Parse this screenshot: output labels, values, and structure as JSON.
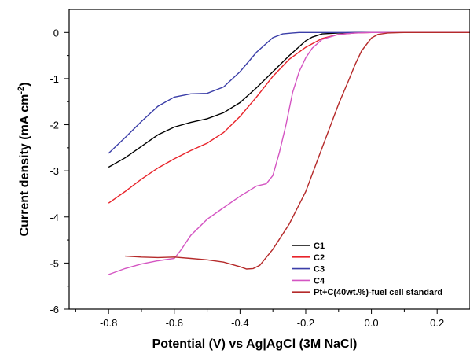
{
  "chart_data": {
    "type": "line",
    "title": "",
    "xlabel": "Potential (V) vs Ag|AgCl (3M NaCl)",
    "ylabel": "Current density (mA cm",
    "ylabel_sup": "-2",
    "ylabel_end": ")",
    "xlim": [
      -0.92,
      0.3
    ],
    "ylim": [
      -6,
      0.5
    ],
    "x_ticks": [
      -0.8,
      -0.6,
      -0.4,
      -0.2,
      0.0,
      0.2
    ],
    "x_tick_labels": [
      "-0.8",
      "-0.6",
      "-0.4",
      "-0.2",
      "0.0",
      "0.2"
    ],
    "y_ticks": [
      0,
      -1,
      -2,
      -3,
      -4,
      -5,
      -6
    ],
    "y_tick_labels": [
      "0",
      "-1",
      "-2",
      "-3",
      "-4",
      "-5",
      "-6"
    ],
    "grid": false,
    "legend_position": "bottom-right",
    "series": [
      {
        "name": "C1",
        "color": "#000000",
        "x": [
          -0.8,
          -0.75,
          -0.7,
          -0.65,
          -0.6,
          -0.55,
          -0.5,
          -0.45,
          -0.4,
          -0.35,
          -0.3,
          -0.25,
          -0.2,
          -0.18,
          -0.15,
          -0.1,
          -0.05,
          0.0,
          0.1,
          0.2,
          0.3
        ],
        "y": [
          -2.92,
          -2.72,
          -2.47,
          -2.22,
          -2.05,
          -1.95,
          -1.87,
          -1.74,
          -1.52,
          -1.2,
          -0.85,
          -0.5,
          -0.18,
          -0.1,
          -0.03,
          -0.01,
          0.0,
          0.0,
          0.0,
          0.0,
          0.0
        ]
      },
      {
        "name": "C2",
        "color": "#e8232a",
        "x": [
          -0.8,
          -0.75,
          -0.7,
          -0.65,
          -0.6,
          -0.55,
          -0.5,
          -0.45,
          -0.4,
          -0.35,
          -0.3,
          -0.25,
          -0.2,
          -0.15,
          -0.1,
          -0.05,
          0.0,
          0.1,
          0.2,
          0.3
        ],
        "y": [
          -3.7,
          -3.45,
          -3.18,
          -2.94,
          -2.74,
          -2.56,
          -2.4,
          -2.17,
          -1.82,
          -1.4,
          -0.95,
          -0.58,
          -0.32,
          -0.13,
          -0.04,
          -0.01,
          0.0,
          0.0,
          0.0,
          0.0
        ]
      },
      {
        "name": "C3",
        "color": "#3b3ea8",
        "x": [
          -0.8,
          -0.75,
          -0.7,
          -0.65,
          -0.6,
          -0.55,
          -0.5,
          -0.45,
          -0.4,
          -0.35,
          -0.3,
          -0.27,
          -0.24,
          -0.22,
          -0.2,
          -0.15,
          -0.1,
          0.0,
          0.1,
          0.2,
          0.3
        ],
        "y": [
          -2.62,
          -2.28,
          -1.93,
          -1.6,
          -1.4,
          -1.33,
          -1.32,
          -1.18,
          -0.85,
          -0.43,
          -0.11,
          -0.03,
          -0.01,
          0.0,
          0.0,
          0.0,
          0.0,
          0.0,
          0.0,
          0.0,
          0.0
        ]
      },
      {
        "name": "C4",
        "color": "#d455c2",
        "x": [
          -0.8,
          -0.75,
          -0.7,
          -0.65,
          -0.6,
          -0.58,
          -0.55,
          -0.5,
          -0.45,
          -0.4,
          -0.35,
          -0.32,
          -0.3,
          -0.28,
          -0.26,
          -0.24,
          -0.22,
          -0.2,
          -0.18,
          -0.15,
          -0.1,
          -0.05,
          0.0,
          0.05,
          0.1,
          0.2,
          0.3
        ],
        "y": [
          -5.25,
          -5.12,
          -5.02,
          -4.95,
          -4.9,
          -4.72,
          -4.4,
          -4.05,
          -3.8,
          -3.55,
          -3.33,
          -3.28,
          -3.1,
          -2.6,
          -2.0,
          -1.3,
          -0.85,
          -0.55,
          -0.34,
          -0.15,
          -0.04,
          -0.01,
          0.0,
          0.0,
          0.0,
          0.0,
          0.0
        ]
      },
      {
        "name": "Pt+C(40wt.%)-fuel cell standard",
        "color": "#b52a2a",
        "x": [
          -0.75,
          -0.7,
          -0.65,
          -0.6,
          -0.55,
          -0.5,
          -0.45,
          -0.4,
          -0.38,
          -0.36,
          -0.34,
          -0.3,
          -0.25,
          -0.2,
          -0.15,
          -0.1,
          -0.07,
          -0.05,
          -0.03,
          0.0,
          0.02,
          0.05,
          0.1,
          0.2,
          0.3
        ],
        "y": [
          -4.85,
          -4.87,
          -4.88,
          -4.87,
          -4.9,
          -4.93,
          -4.98,
          -5.08,
          -5.13,
          -5.12,
          -5.05,
          -4.7,
          -4.15,
          -3.45,
          -2.5,
          -1.55,
          -1.05,
          -0.7,
          -0.4,
          -0.12,
          -0.04,
          -0.01,
          0.0,
          0.0,
          0.0
        ]
      }
    ]
  }
}
